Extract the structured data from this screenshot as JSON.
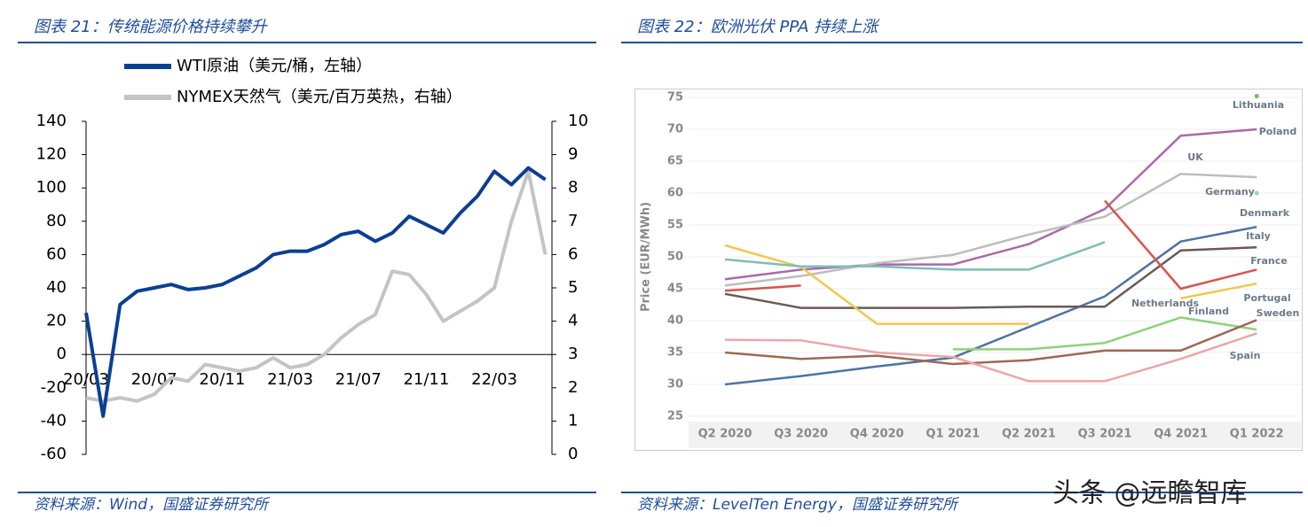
{
  "chart_data": [
    {
      "type": "line",
      "title": "图表 21：传统能源价格持续攀升",
      "source": "资料来源：Wind，国盛证券研究所",
      "categories": [
        "20/03",
        null,
        null,
        null,
        "20/07",
        null,
        null,
        null,
        "20/11",
        null,
        null,
        null,
        "21/03",
        null,
        null,
        null,
        "21/07",
        null,
        null,
        null,
        "21/11",
        null,
        null,
        null,
        "22/03",
        null,
        null,
        null
      ],
      "series": [
        {
          "name": "NYMEX天然气（美元/百万英热，右轴）",
          "color": "#c4c4c4",
          "axis": "y2",
          "values": [
            1.7,
            1.6,
            1.7,
            1.6,
            1.8,
            2.3,
            2.2,
            2.7,
            2.6,
            2.5,
            2.6,
            2.9,
            2.6,
            2.7,
            3.0,
            3.5,
            3.9,
            4.2,
            5.5,
            5.4,
            4.8,
            4.0,
            4.3,
            4.6,
            5.0,
            7.0,
            8.5,
            6.0
          ]
        },
        {
          "name": "WTI原油（美元/桶，左轴）",
          "color": "#0b3f94",
          "values": [
            25,
            -37,
            30,
            38,
            40,
            42,
            39,
            40,
            42,
            47,
            52,
            60,
            62,
            62,
            66,
            72,
            74,
            68,
            73,
            83,
            78,
            73,
            85,
            95,
            110,
            102,
            112,
            105
          ]
        }
      ],
      "ylim": [
        -60,
        140
      ],
      "yticks": [
        -60,
        -40,
        -20,
        0,
        20,
        40,
        60,
        80,
        100,
        120,
        140
      ],
      "y2lim": [
        0,
        10
      ],
      "y2ticks": [
        0,
        1,
        2,
        3,
        4,
        5,
        6,
        7,
        8,
        9,
        10
      ]
    },
    {
      "type": "line",
      "title": "图表 22：欧洲光伏 PPA 持续上涨",
      "source": "资料来源：LevelTen Energy，国盛证券研究所",
      "y_label": "Price (EUR/MWh)",
      "categories": [
        "Q2 2020",
        "Q3 2020",
        "Q4 2020",
        "Q1 2021",
        "Q2 2021",
        "Q3 2021",
        "Q4 2021",
        "Q1 2022"
      ],
      "series": [
        {
          "name": "Lithuania",
          "color": "#6abf5e",
          "values": [
            null,
            null,
            null,
            null,
            null,
            null,
            null,
            75.2
          ]
        },
        {
          "name": "Poland",
          "color": "#a86aa9",
          "values": [
            46.5,
            48,
            48.8,
            48.8,
            52,
            57.5,
            69,
            70
          ]
        },
        {
          "name": "UK",
          "color": "#bdbdbd",
          "values": [
            45.5,
            47,
            49,
            50.3,
            53.5,
            56.3,
            63,
            62.5
          ]
        },
        {
          "name": "Germany",
          "color": "#9fcfc8",
          "values": [
            null,
            null,
            null,
            null,
            null,
            null,
            null,
            60
          ]
        },
        {
          "name": "Denmark",
          "color": "#4d74a4",
          "values": [
            30,
            31.3,
            32.8,
            34.2,
            39,
            43.8,
            52.4,
            54.7
          ]
        },
        {
          "name": "Italy",
          "color": "#6b5a55",
          "values": [
            44.2,
            42,
            42,
            42,
            42.2,
            42.2,
            51,
            51.5
          ]
        },
        {
          "name": "France",
          "color": "#d9534f",
          "values": [
            44.7,
            45.5,
            null,
            null,
            null,
            58.8,
            45,
            48
          ]
        },
        {
          "name": "Portugal",
          "color": "#f0c84a",
          "values": [
            51.8,
            48.4,
            39.5,
            39.5,
            39.5,
            null,
            43.5,
            45.8
          ]
        },
        {
          "name": "Netherlands",
          "color": "#7cbfb5",
          "values": [
            49.6,
            48.5,
            48.5,
            48,
            48,
            52.3,
            null,
            null
          ]
        },
        {
          "name": "Finland",
          "color": "#90d17b",
          "values": [
            null,
            null,
            null,
            35.5,
            35.5,
            36.5,
            40.5,
            38.6
          ]
        },
        {
          "name": "Sweden",
          "color": "#9b6a55",
          "values": [
            35,
            34,
            34.5,
            33.2,
            33.8,
            35.3,
            35.3,
            40.1
          ]
        },
        {
          "name": "Spain",
          "color": "#f0a4a8",
          "values": [
            37,
            36.9,
            35,
            34.3,
            30.5,
            30.5,
            34,
            38
          ]
        }
      ],
      "ylim": [
        25,
        75
      ],
      "yticks": [
        25,
        30,
        35,
        40,
        45,
        50,
        55,
        60,
        65,
        70,
        75
      ],
      "grid": true
    },
    {
      "type": "text",
      "watermark": "头条 @远瞻智库"
    }
  ]
}
